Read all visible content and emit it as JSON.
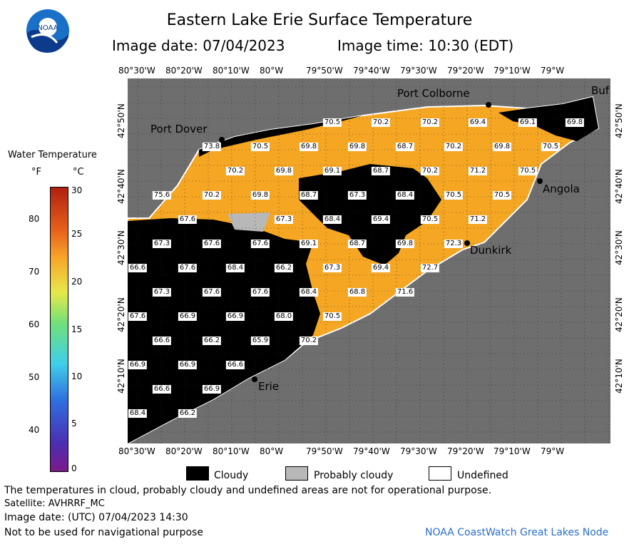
{
  "header": {
    "title": "Eastern Lake Erie Surface Temperature",
    "image_date_label": "Image date: 07/04/2023",
    "image_time_label": "Image time: 10:30 (EDT)"
  },
  "logo": {
    "text": "NOAA"
  },
  "colorbar": {
    "title": "Water Temperature",
    "unit_f": "°F",
    "unit_c": "°C",
    "f_ticks": [
      "80",
      "70",
      "60",
      "50",
      "40"
    ],
    "c_ticks": [
      "30",
      "25",
      "20",
      "15",
      "10",
      "5",
      "0"
    ]
  },
  "axes": {
    "lon_ticks": [
      "80°30'W",
      "80°20'W",
      "80°10'W",
      "80°W",
      "79°50'W",
      "79°40'W",
      "79°30'W",
      "79°20'W",
      "79°10'W",
      "79°W"
    ],
    "lat_ticks": [
      "42°50'N",
      "42°40'N",
      "42°30'N",
      "42°20'N",
      "42°10'N"
    ]
  },
  "cities": [
    "Port Colborne",
    "Port Dover",
    "Angola",
    "Dunkirk",
    "Erie",
    "Buf"
  ],
  "temperatures": [
    "70.5",
    "70.2",
    "70.2",
    "69.4",
    "69.1",
    "69.8",
    "73.8",
    "70.5",
    "69.8",
    "69.8",
    "68.7",
    "70.2",
    "69.8",
    "70.5",
    "70.2",
    "69.8",
    "69.1",
    "68.7",
    "70.2",
    "71.2",
    "70.5",
    "75.6",
    "70.2",
    "69.8",
    "68.7",
    "67.3",
    "68.4",
    "70.5",
    "70.5",
    "67.6",
    "67.3",
    "68.4",
    "69.4",
    "70.5",
    "71.2",
    "67.3",
    "67.6",
    "67.6",
    "69.1",
    "68.7",
    "69.8",
    "72.3",
    "66.6",
    "67.6",
    "68.4",
    "66.2",
    "67.3",
    "69.4",
    "72.7",
    "67.3",
    "67.6",
    "67.6",
    "68.4",
    "68.8",
    "71.6",
    "67.6",
    "66.9",
    "66.9",
    "68.0",
    "70.5",
    "66.6",
    "66.2",
    "65.9",
    "70.2",
    "66.9",
    "66.9",
    "66.6",
    "66.6",
    "66.9",
    "68.4",
    "66.2"
  ],
  "legend": {
    "cloudy": "Cloudy",
    "probably_cloudy": "Probably cloudy",
    "undefined": "Undefined"
  },
  "footer": {
    "note": "The temperatures in cloud, probably cloudy and undefined areas are not for operational purpose.",
    "satellite": "Satellite: AVHRRF_MC",
    "utc_date": "Image date: (UTC) 07/04/2023  14:30",
    "navigation": "Not to be used for navigational purpose",
    "credit": "NOAA CoastWatch Great Lakes Node"
  },
  "colors": {
    "land": "#6e6e6e",
    "water_warm": "#f5a623",
    "cloud": "#000000",
    "probably_cloudy": "#b8b8b8"
  }
}
